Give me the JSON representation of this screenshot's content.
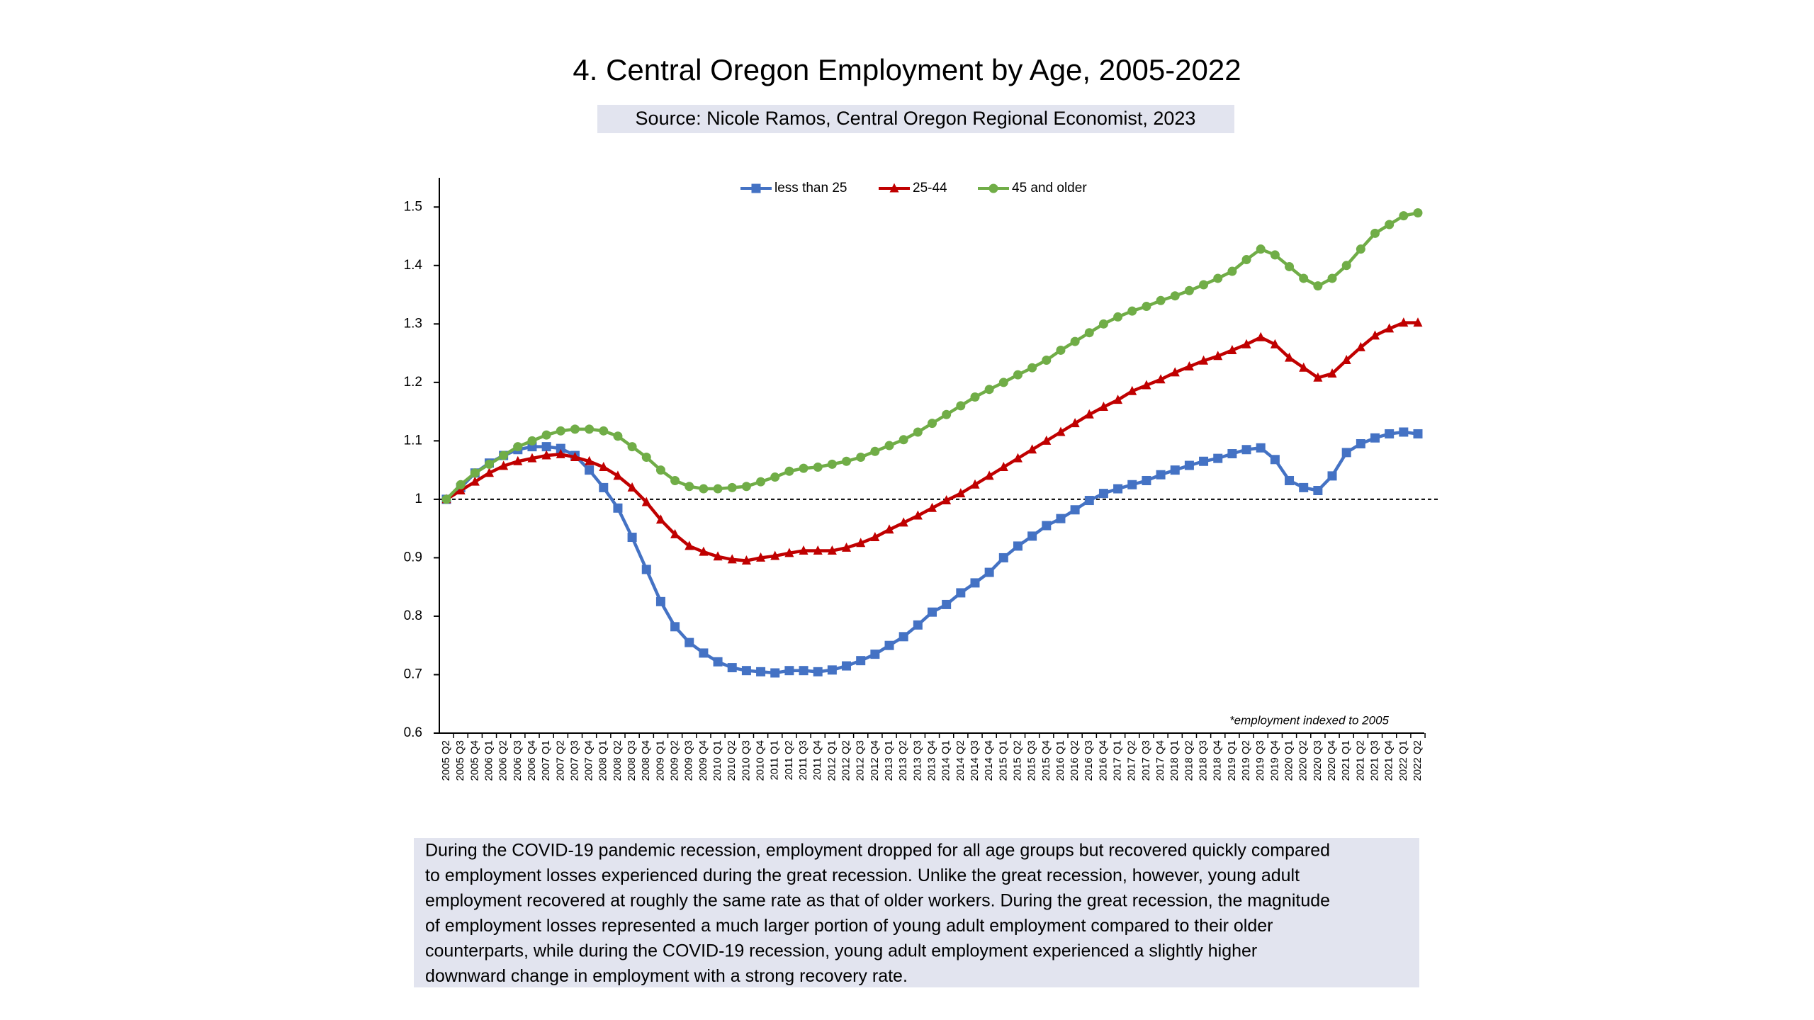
{
  "chart_data": {
    "type": "line",
    "title": "4. Central Oregon Employment by Age, 2005-2022",
    "subtitle": "Source: Nicole Ramos, Central Oregon Regional Economist, 2023",
    "note": "*employment indexed to 2005",
    "categories": [
      "2005 Q2",
      "2005 Q3",
      "2005 Q4",
      "2006 Q1",
      "2006 Q2",
      "2006 Q3",
      "2006 Q4",
      "2007 Q1",
      "2007 Q2",
      "2007 Q3",
      "2007 Q4",
      "2008 Q1",
      "2008 Q2",
      "2008 Q3",
      "2008 Q4",
      "2009 Q1",
      "2009 Q2",
      "2009 Q3",
      "2009 Q4",
      "2010 Q1",
      "2010 Q2",
      "2010 Q3",
      "2010 Q4",
      "2011 Q1",
      "2011 Q2",
      "2011 Q3",
      "2011 Q4",
      "2012 Q1",
      "2012 Q2",
      "2012 Q3",
      "2012 Q4",
      "2013 Q1",
      "2013 Q2",
      "2013 Q3",
      "2013 Q4",
      "2014 Q1",
      "2014 Q2",
      "2014 Q3",
      "2014 Q4",
      "2015 Q1",
      "2015 Q2",
      "2015 Q3",
      "2015 Q4",
      "2016 Q1",
      "2016 Q2",
      "2016 Q3",
      "2016 Q4",
      "2017 Q1",
      "2017 Q2",
      "2017 Q3",
      "2017 Q4",
      "2018 Q1",
      "2018 Q2",
      "2018 Q3",
      "2018 Q4",
      "2019 Q1",
      "2019 Q2",
      "2019 Q3",
      "2019 Q4",
      "2020 Q1",
      "2020 Q2",
      "2020 Q3",
      "2020 Q4",
      "2021 Q1",
      "2021 Q2",
      "2021 Q3",
      "2021 Q4",
      "2022 Q1",
      "2022 Q2"
    ],
    "series": [
      {
        "name": "less than 25",
        "color": "#4472c4",
        "marker": "square",
        "values": [
          1.0,
          1.02,
          1.045,
          1.062,
          1.075,
          1.085,
          1.09,
          1.09,
          1.087,
          1.075,
          1.05,
          1.02,
          0.985,
          0.935,
          0.88,
          0.825,
          0.782,
          0.755,
          0.737,
          0.722,
          0.712,
          0.707,
          0.705,
          0.703,
          0.707,
          0.707,
          0.705,
          0.708,
          0.715,
          0.724,
          0.735,
          0.75,
          0.765,
          0.785,
          0.807,
          0.82,
          0.84,
          0.857,
          0.875,
          0.9,
          0.92,
          0.937,
          0.955,
          0.967,
          0.982,
          0.998,
          1.01,
          1.018,
          1.025,
          1.032,
          1.042,
          1.05,
          1.058,
          1.065,
          1.07,
          1.078,
          1.085,
          1.088,
          1.068,
          1.032,
          1.02,
          1.015,
          1.04,
          1.08,
          1.095,
          1.105,
          1.112,
          1.115,
          1.112
        ]
      },
      {
        "name": "25-44",
        "color": "#c00000",
        "marker": "triangle",
        "values": [
          1.0,
          1.015,
          1.03,
          1.045,
          1.057,
          1.065,
          1.07,
          1.075,
          1.077,
          1.072,
          1.065,
          1.055,
          1.04,
          1.02,
          0.995,
          0.965,
          0.94,
          0.92,
          0.91,
          0.902,
          0.897,
          0.895,
          0.9,
          0.903,
          0.908,
          0.912,
          0.912,
          0.912,
          0.917,
          0.925,
          0.935,
          0.948,
          0.96,
          0.972,
          0.985,
          0.998,
          1.01,
          1.025,
          1.04,
          1.055,
          1.07,
          1.085,
          1.1,
          1.115,
          1.13,
          1.145,
          1.158,
          1.17,
          1.185,
          1.195,
          1.205,
          1.217,
          1.227,
          1.237,
          1.245,
          1.255,
          1.265,
          1.277,
          1.265,
          1.242,
          1.225,
          1.208,
          1.215,
          1.238,
          1.26,
          1.28,
          1.292,
          1.302,
          1.302
        ]
      },
      {
        "name": "45 and older",
        "color": "#70ad47",
        "marker": "circle",
        "values": [
          1.0,
          1.025,
          1.045,
          1.06,
          1.075,
          1.09,
          1.1,
          1.11,
          1.117,
          1.12,
          1.12,
          1.117,
          1.108,
          1.09,
          1.072,
          1.05,
          1.032,
          1.022,
          1.018,
          1.018,
          1.02,
          1.022,
          1.03,
          1.038,
          1.048,
          1.053,
          1.055,
          1.06,
          1.065,
          1.072,
          1.082,
          1.092,
          1.102,
          1.115,
          1.13,
          1.145,
          1.16,
          1.175,
          1.188,
          1.2,
          1.213,
          1.225,
          1.238,
          1.255,
          1.27,
          1.285,
          1.3,
          1.312,
          1.322,
          1.33,
          1.34,
          1.348,
          1.357,
          1.367,
          1.378,
          1.39,
          1.41,
          1.428,
          1.418,
          1.398,
          1.378,
          1.365,
          1.378,
          1.4,
          1.428,
          1.455,
          1.47,
          1.485,
          1.49
        ]
      }
    ],
    "ylim": [
      0.6,
      1.55
    ],
    "yticks": [
      0.6,
      0.7,
      0.8,
      0.9,
      1,
      1.1,
      1.2,
      1.3,
      1.4,
      1.5
    ],
    "reference_line": 1,
    "grid": false,
    "legend": "top"
  },
  "description": [
    "During the COVID-19 pandemic recession, employment dropped for all age groups but recovered quickly compared",
    "to employment losses experienced during the great recession. Unlike the great recession, however, young adult",
    "employment recovered at roughly the same rate as that of older workers. During the great recession, the magnitude",
    "of employment losses represented a much larger portion of young adult employment compared to their older",
    "counterparts, while during the COVID-19 recession, young adult employment experienced a slightly higher",
    "downward change in employment with a strong recovery rate."
  ]
}
